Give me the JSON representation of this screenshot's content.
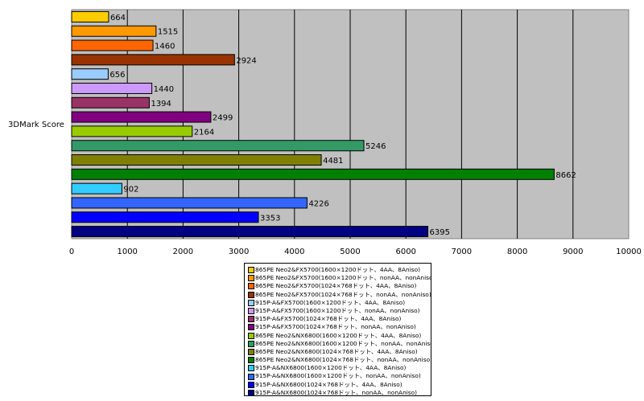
{
  "chart_data": {
    "type": "bar",
    "orientation": "horizontal",
    "ylabel": "3DMark Score",
    "xlabel": "",
    "xlim": [
      0,
      10000
    ],
    "xticks": [
      0,
      1000,
      2000,
      3000,
      4000,
      5000,
      6000,
      7000,
      8000,
      9000,
      10000
    ],
    "grid": true,
    "legend_position": "bottom",
    "series": [
      {
        "name": "865PE Neo2&FX5700(1600×1200ドット、4AA、8Aniso)",
        "value": 664,
        "color": "#ffcc00"
      },
      {
        "name": "865PE Neo2&FX5700(1600×1200ドット、nonAA、nonAniso)",
        "value": 1515,
        "color": "#ff9900"
      },
      {
        "name": "865PE Neo2&FX5700(1024×768ドット、4AA、8Aniso)",
        "value": 1460,
        "color": "#ff6600"
      },
      {
        "name": "865PE Neo2&FX5700(1024×768ドット、nonAA、nonAniso)",
        "value": 2924,
        "color": "#993300"
      },
      {
        "name": "915P-A&FX5700(1600×1200ドット、4AA、8Aniso)",
        "value": 656,
        "color": "#99ccff"
      },
      {
        "name": "915P-A&FX5700(1600×1200ドット、nonAA、nonAniso)",
        "value": 1440,
        "color": "#cc99ff"
      },
      {
        "name": "915P-A&FX5700(1024×768ドット、4AA、8Aniso)",
        "value": 1394,
        "color": "#993366"
      },
      {
        "name": "915P-A&FX5700(1024×768ドット、nonAA、nonAniso)",
        "value": 2499,
        "color": "#800080"
      },
      {
        "name": "865PE Neo2&NX6800(1600×1200ドット、4AA、8Aniso)",
        "value": 2164,
        "color": "#99cc00"
      },
      {
        "name": "865PE Neo2&NX6800(1600×1200ドット、nonAA、nonAniso)",
        "value": 5246,
        "color": "#339966"
      },
      {
        "name": "865PE Neo2&NX6800(1024×768ドット、4AA、8Aniso)",
        "value": 4481,
        "color": "#808000"
      },
      {
        "name": "865PE Neo2&NX6800(1024×768ドット、nonAA、nonAniso)",
        "value": 8662,
        "color": "#008000"
      },
      {
        "name": "915P-A&NX6800(1600×1200ドット、4AA、8Aniso)",
        "value": 902,
        "color": "#33ccff"
      },
      {
        "name": "915P-A&NX6800(1600×1200ドット、nonAA、nonAniso)",
        "value": 4226,
        "color": "#3366ff"
      },
      {
        "name": "915P-A&NX6800(1024×768ドット、4AA、8Aniso)",
        "value": 3353,
        "color": "#0000ff"
      },
      {
        "name": "915P-A&NX6800(1024×768ドット、nonAA、nonAniso)",
        "value": 6395,
        "color": "#000080"
      }
    ]
  }
}
